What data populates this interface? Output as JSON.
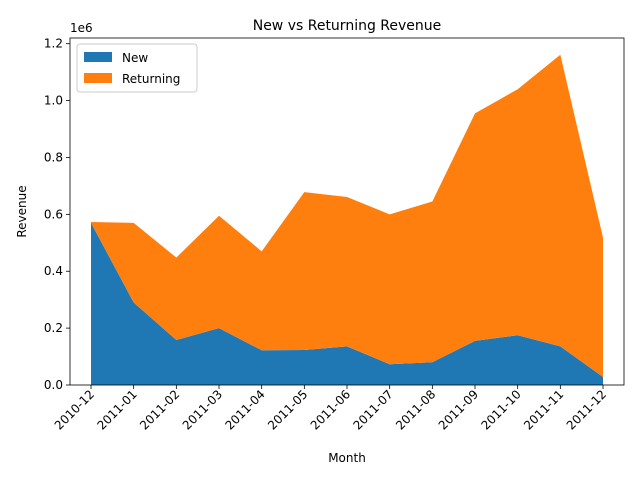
{
  "chart_data": {
    "type": "area",
    "stacked": true,
    "title": "New vs Returning Revenue",
    "xlabel": "Month",
    "ylabel": "Revenue",
    "y_offset_label": "1e6",
    "categories": [
      "2010-12",
      "2011-01",
      "2011-02",
      "2011-03",
      "2011-04",
      "2011-05",
      "2011-06",
      "2011-07",
      "2011-08",
      "2011-09",
      "2011-10",
      "2011-11",
      "2011-12"
    ],
    "series": [
      {
        "name": "New",
        "color": "#1f77b4",
        "values": [
          570000,
          290000,
          158000,
          200000,
          122000,
          123000,
          136000,
          73000,
          80000,
          155000,
          175000,
          136000,
          28000
        ]
      },
      {
        "name": "Returning",
        "color": "#ff7f0e",
        "values": [
          3000,
          280000,
          290000,
          395000,
          348000,
          555000,
          525000,
          527000,
          565000,
          800000,
          865000,
          1025000,
          490000
        ]
      }
    ],
    "yticks": [
      "0.0",
      "0.2",
      "0.4",
      "0.6",
      "0.8",
      "1.0",
      "1.2"
    ],
    "ytick_values": [
      0,
      200000,
      400000,
      600000,
      800000,
      1000000,
      1200000
    ],
    "ylim": [
      0,
      1220000
    ],
    "grid": false,
    "legend_position": "top-left"
  }
}
